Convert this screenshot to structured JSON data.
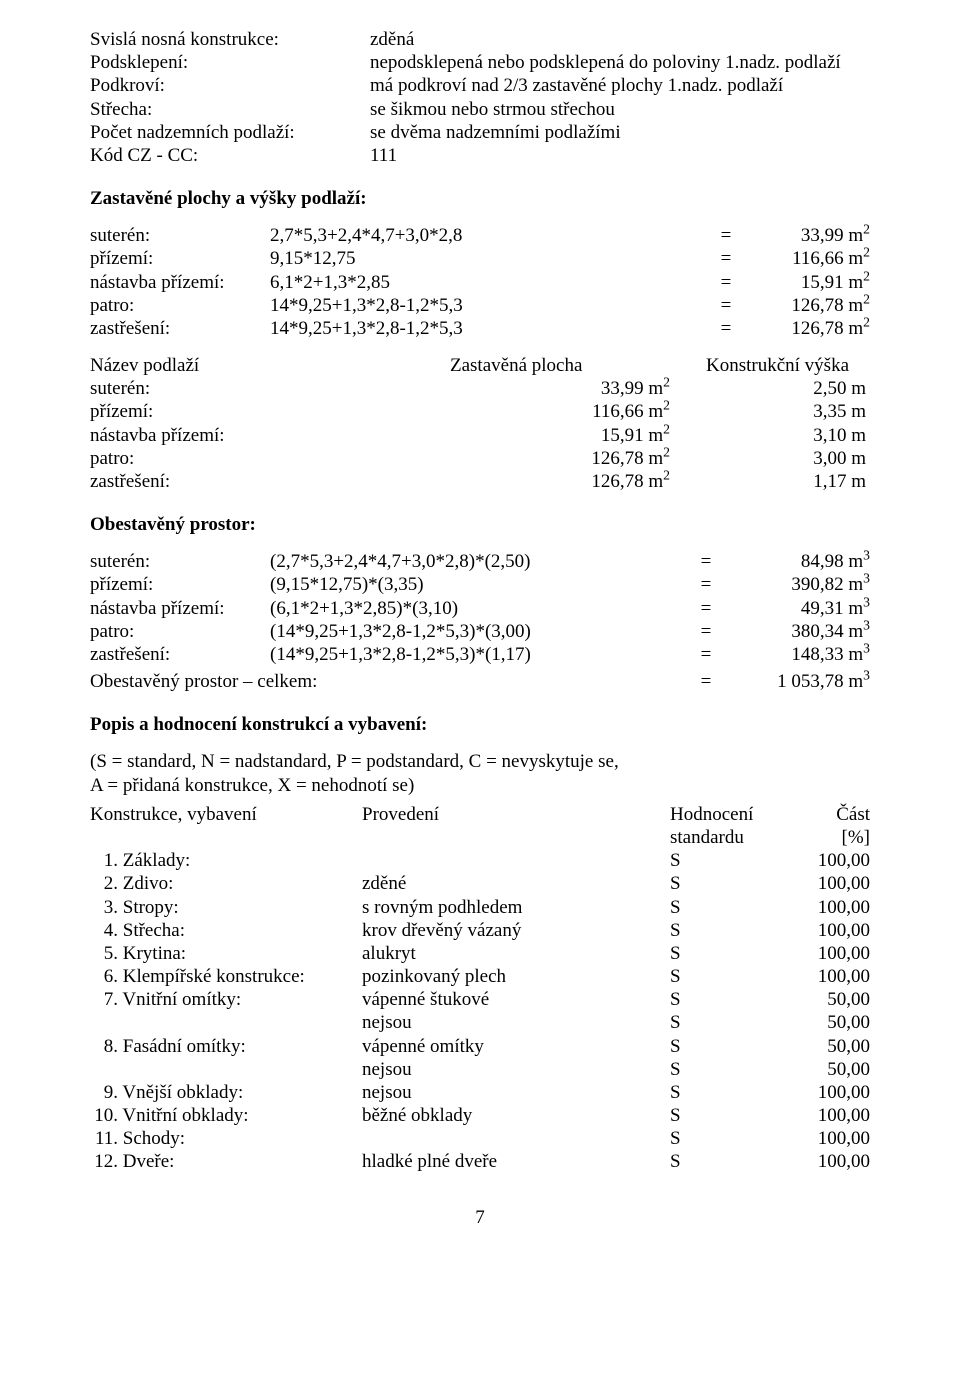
{
  "primary": [
    {
      "label": "Svislá nosná konstrukce:",
      "value": "zděná"
    },
    {
      "label": "Podsklepení:",
      "value": "nepodsklepená nebo podsklepená do poloviny 1.nadz. podlaží"
    },
    {
      "label": "Podkroví:",
      "value": "má podkroví nad 2/3 zastavěné plochy 1.nadz. podlaží"
    },
    {
      "label": "Střecha:",
      "value": "se šikmou nebo strmou střechou"
    },
    {
      "label": "Počet nadzemních podlaží:",
      "value": "se dvěma nadzemními podlažími"
    },
    {
      "label": "Kód CZ - CC:",
      "value": "111"
    }
  ],
  "title_zastavene": "Zastavěné plochy a výšky podlaží:",
  "zastavene": [
    {
      "label": "suterén:",
      "expr": "2,7*5,3+2,4*4,7+3,0*2,8",
      "eq": "=",
      "res_prefix": "33,99 m",
      "sup": "2"
    },
    {
      "label": "přízemí:",
      "expr": "9,15*12,75",
      "eq": "=",
      "res_prefix": "116,66 m",
      "sup": "2"
    },
    {
      "label": "nástavba přízemí:",
      "expr": "6,1*2+1,3*2,85",
      "eq": "=",
      "res_prefix": "15,91 m",
      "sup": "2"
    },
    {
      "label": "patro:",
      "expr": "14*9,25+1,3*2,8-1,2*5,3",
      "eq": "=",
      "res_prefix": "126,78 m",
      "sup": "2"
    },
    {
      "label": "zastřešení:",
      "expr": "14*9,25+1,3*2,8-1,2*5,3",
      "eq": "=",
      "res_prefix": "126,78 m",
      "sup": "2"
    }
  ],
  "dim_header": {
    "name": "Název podlaží",
    "area": "Zastavěná plocha",
    "height": "Konstrukční výška"
  },
  "dims": [
    {
      "label": "suterén:",
      "area_prefix": "33,99 m",
      "sup": "2",
      "h": "2,50 m"
    },
    {
      "label": "přízemí:",
      "area_prefix": "116,66 m",
      "sup": "2",
      "h": "3,35 m"
    },
    {
      "label": "nástavba přízemí:",
      "area_prefix": "15,91 m",
      "sup": "2",
      "h": "3,10 m"
    },
    {
      "label": "patro:",
      "area_prefix": "126,78 m",
      "sup": "2",
      "h": "3,00 m"
    },
    {
      "label": "zastřešení:",
      "area_prefix": "126,78 m",
      "sup": "2",
      "h": "1,17 m"
    }
  ],
  "title_obestaveny": "Obestavěný prostor:",
  "obs": [
    {
      "label": "suterén:",
      "expr": "(2,7*5,3+2,4*4,7+3,0*2,8)*(2,50)",
      "eq": "=",
      "res_prefix": "84,98 m",
      "sup": "3"
    },
    {
      "label": "přízemí:",
      "expr": "(9,15*12,75)*(3,35)",
      "eq": "=",
      "res_prefix": "390,82 m",
      "sup": "3"
    },
    {
      "label": "nástavba přízemí:",
      "expr": "(6,1*2+1,3*2,85)*(3,10)",
      "eq": "=",
      "res_prefix": "49,31 m",
      "sup": "3"
    },
    {
      "label": "patro:",
      "expr": "(14*9,25+1,3*2,8-1,2*5,3)*(3,00)",
      "eq": "=",
      "res_prefix": "380,34 m",
      "sup": "3"
    },
    {
      "label": "zastřešení:",
      "expr": "(14*9,25+1,3*2,8-1,2*5,3)*(1,17)",
      "eq": "=",
      "res_prefix": "148,33 m",
      "sup": "3"
    }
  ],
  "obs_total": {
    "label": "Obestavěný prostor – celkem:",
    "eq": "=",
    "res_prefix": "1 053,78 m",
    "sup": "3"
  },
  "title_popis": "Popis a hodnocení konstrukcí a vybavení:",
  "popis_line1": "(S = standard, N = nadstandard, P = podstandard, C = nevyskytuje se,",
  "popis_line2": "A = přidaná konstrukce, X = nehodnotí se)",
  "kon_header": {
    "name": "Konstrukce, vybavení",
    "prov": "Provedení",
    "hod": "Hodnocení",
    "part": "Část",
    "part2": "[%]",
    "hod2": "standardu"
  },
  "kon": [
    {
      "n": "1.",
      "name": "Základy:",
      "prov": "",
      "hod": "S",
      "part": "100,00"
    },
    {
      "n": "2.",
      "name": "Zdivo:",
      "prov": "zděné",
      "hod": "S",
      "part": "100,00"
    },
    {
      "n": "3.",
      "name": "Stropy:",
      "prov": "s rovným podhledem",
      "hod": "S",
      "part": "100,00"
    },
    {
      "n": "4.",
      "name": "Střecha:",
      "prov": "krov dřevěný vázaný",
      "hod": "S",
      "part": "100,00"
    },
    {
      "n": "5.",
      "name": "Krytina:",
      "prov": "alukryt",
      "hod": "S",
      "part": "100,00"
    },
    {
      "n": "6.",
      "name": "Klempířské konstrukce:",
      "prov": "pozinkovaný plech",
      "hod": "S",
      "part": "100,00"
    },
    {
      "n": "7.",
      "name": "Vnitřní omítky:",
      "prov": "vápenné štukové",
      "hod": "S",
      "part": "50,00"
    },
    {
      "n": "",
      "name": "",
      "prov": "nejsou",
      "hod": "S",
      "part": "50,00"
    },
    {
      "n": "8.",
      "name": "Fasádní omítky:",
      "prov": "vápenné omítky",
      "hod": "S",
      "part": "50,00"
    },
    {
      "n": "",
      "name": "",
      "prov": "nejsou",
      "hod": "S",
      "part": "50,00"
    },
    {
      "n": "9.",
      "name": "Vnější obklady:",
      "prov": "nejsou",
      "hod": "S",
      "part": "100,00"
    },
    {
      "n": "10.",
      "name": "Vnitřní obklady:",
      "prov": "běžné obklady",
      "hod": "S",
      "part": "100,00"
    },
    {
      "n": "11.",
      "name": "Schody:",
      "prov": "",
      "hod": "S",
      "part": "100,00"
    },
    {
      "n": "12.",
      "name": "Dveře:",
      "prov": "hladké plné dveře",
      "hod": "S",
      "part": "100,00"
    }
  ],
  "pagenum": "7"
}
